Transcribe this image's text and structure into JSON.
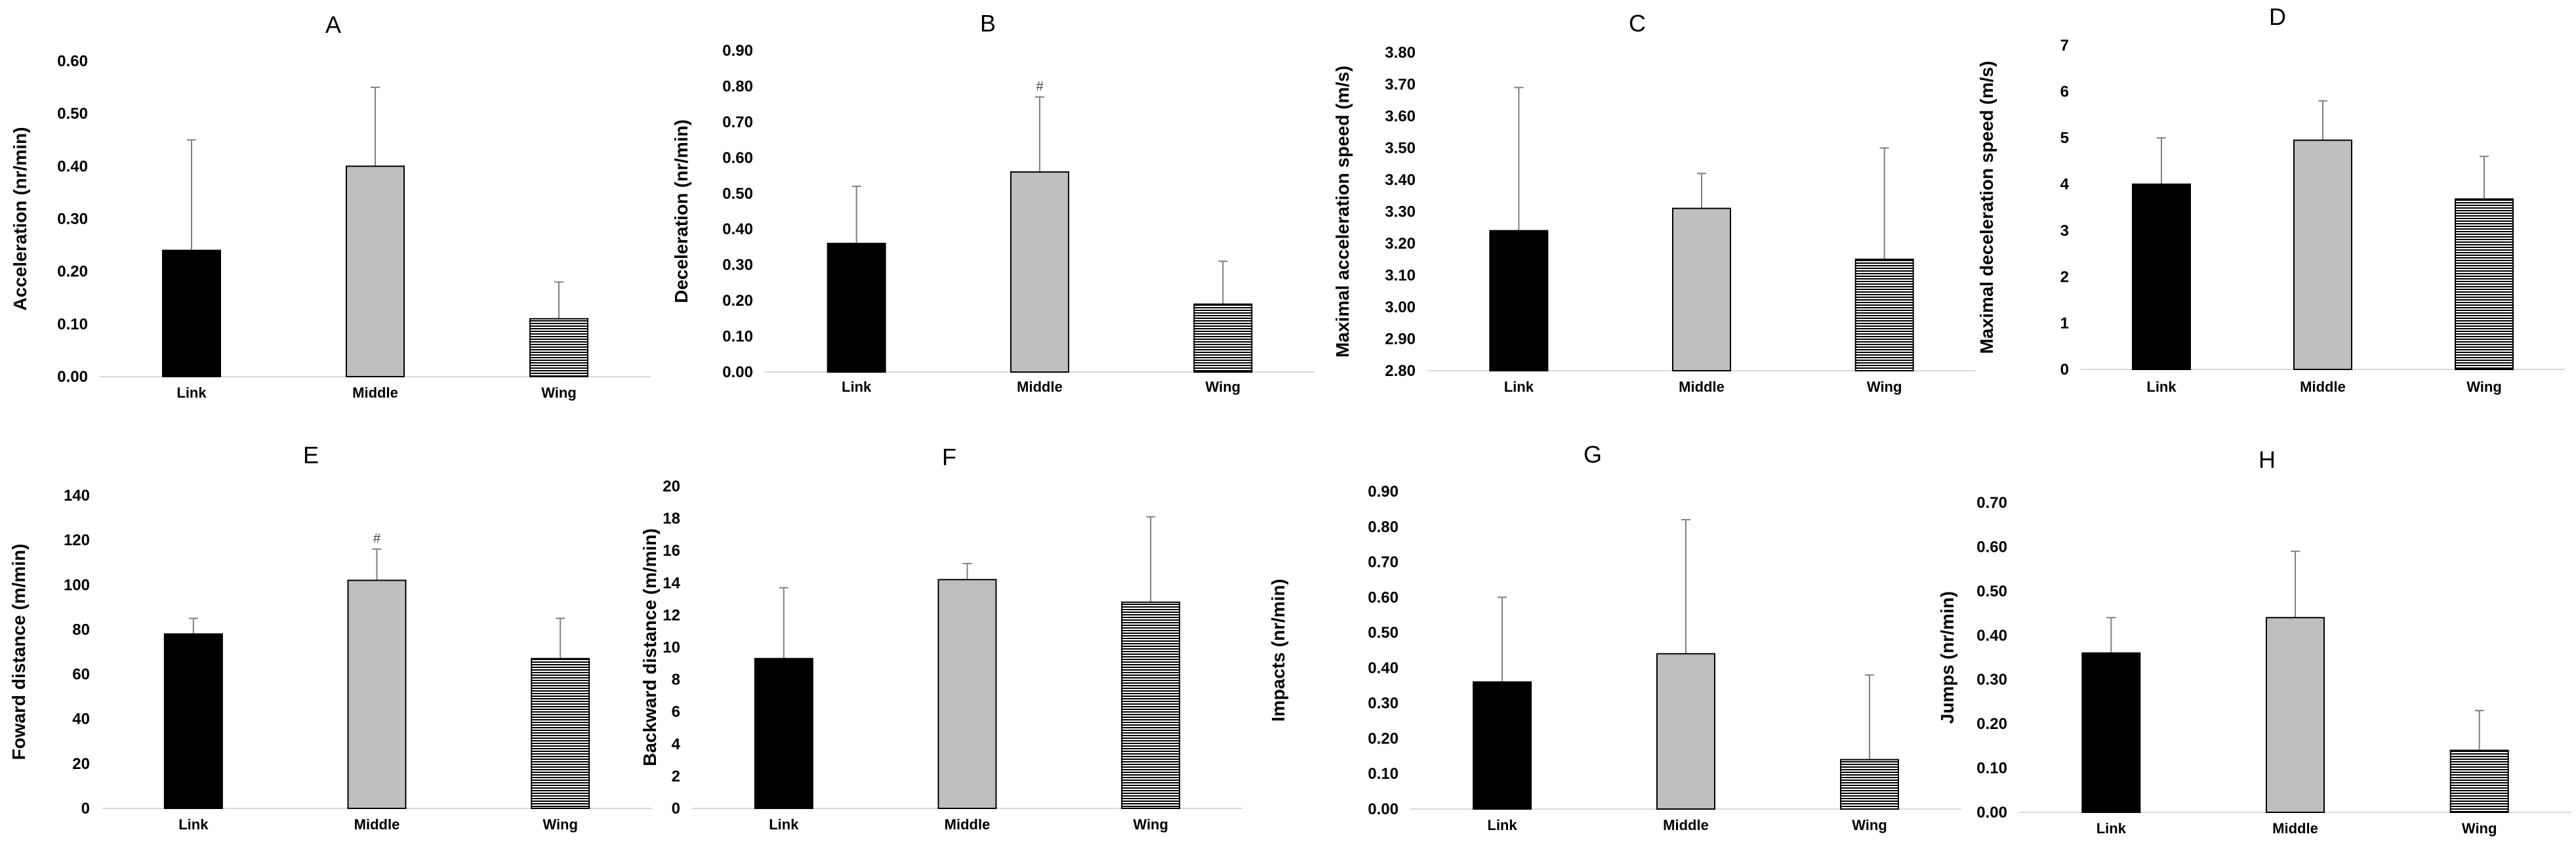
{
  "colors": {
    "link": "#000000",
    "middle": "#bfbfbf",
    "wing_fill": "#ffffff",
    "wing_stripe": "#000000",
    "error_bar": "#808080",
    "axis": "#d9d9d9"
  },
  "chart_data": [
    {
      "type": "bar",
      "panel": "A",
      "title": "A",
      "categories": [
        "Link",
        "Middle",
        "Wing"
      ],
      "values": [
        0.24,
        0.4,
        0.11
      ],
      "error_upper": [
        0.45,
        0.55,
        0.18
      ],
      "ylabel": "Acceleration (nr/min)",
      "ylim": [
        0,
        0.6
      ],
      "yticks": [
        "0.00",
        "0.10",
        "0.20",
        "0.30",
        "0.40",
        "0.50",
        "0.60"
      ],
      "significance": [
        "",
        "",
        ""
      ]
    },
    {
      "type": "bar",
      "panel": "B",
      "title": "B",
      "categories": [
        "Link",
        "Middle",
        "Wing"
      ],
      "values": [
        0.36,
        0.56,
        0.19
      ],
      "error_upper": [
        0.52,
        0.77,
        0.31
      ],
      "ylabel": "Deceleration (nr/min)",
      "ylim": [
        0,
        0.9
      ],
      "yticks": [
        "0.00",
        "0.10",
        "0.20",
        "0.30",
        "0.40",
        "0.50",
        "0.60",
        "0.70",
        "0.80",
        "0.90"
      ],
      "significance": [
        "",
        "#",
        ""
      ]
    },
    {
      "type": "bar",
      "panel": "C",
      "title": "C",
      "categories": [
        "Link",
        "Middle",
        "Wing"
      ],
      "values": [
        3.24,
        3.31,
        3.15
      ],
      "error_upper": [
        3.69,
        3.42,
        3.5
      ],
      "ylabel": "Maximal acceleration speed (m/s)",
      "ylim": [
        2.8,
        3.8
      ],
      "yticks": [
        "2.80",
        "2.90",
        "3.00",
        "3.10",
        "3.20",
        "3.30",
        "3.40",
        "3.50",
        "3.60",
        "3.70",
        "3.80"
      ],
      "significance": [
        "",
        "",
        ""
      ]
    },
    {
      "type": "bar",
      "panel": "D",
      "title": "D",
      "categories": [
        "Link",
        "Middle",
        "Wing"
      ],
      "values": [
        4.0,
        4.95,
        3.68
      ],
      "error_upper": [
        5.0,
        5.8,
        4.6
      ],
      "ylabel": "Maximal deceleration speed (m/s)",
      "ylim": [
        0,
        7
      ],
      "yticks": [
        "0",
        "1",
        "2",
        "3",
        "4",
        "5",
        "6",
        "7"
      ],
      "significance": [
        "",
        "",
        ""
      ]
    },
    {
      "type": "bar",
      "panel": "E",
      "title": "E",
      "categories": [
        "Link",
        "Middle",
        "Wing"
      ],
      "values": [
        78,
        102,
        67
      ],
      "error_upper": [
        85,
        116,
        85
      ],
      "ylabel": "Foward distance (m/min)",
      "ylim": [
        0,
        140
      ],
      "yticks": [
        "0",
        "20",
        "40",
        "60",
        "80",
        "100",
        "120",
        "140"
      ],
      "significance": [
        "",
        "#",
        ""
      ]
    },
    {
      "type": "bar",
      "panel": "F",
      "title": "F",
      "categories": [
        "Link",
        "Middle",
        "Wing"
      ],
      "values": [
        9.3,
        14.2,
        12.8
      ],
      "error_upper": [
        13.7,
        15.2,
        18.1
      ],
      "ylabel": "Backward distance (m/min)",
      "ylim": [
        0,
        20
      ],
      "yticks": [
        "0",
        "2",
        "4",
        "6",
        "8",
        "10",
        "12",
        "14",
        "16",
        "18",
        "20"
      ],
      "significance": [
        "",
        "",
        ""
      ]
    },
    {
      "type": "bar",
      "panel": "G",
      "title": "G",
      "categories": [
        "Link",
        "Middle",
        "Wing"
      ],
      "values": [
        0.36,
        0.44,
        0.14
      ],
      "error_upper": [
        0.6,
        0.82,
        0.38
      ],
      "ylabel": "Impacts (nr/min)",
      "ylim": [
        0,
        0.9
      ],
      "yticks": [
        "0.00",
        "0.10",
        "0.20",
        "0.30",
        "0.40",
        "0.50",
        "0.60",
        "0.70",
        "0.80",
        "0.90"
      ],
      "significance": [
        "",
        "",
        ""
      ]
    },
    {
      "type": "bar",
      "panel": "H",
      "title": "H",
      "categories": [
        "Link",
        "Middle",
        "Wing"
      ],
      "values": [
        0.36,
        0.44,
        0.14
      ],
      "error_upper": [
        0.44,
        0.59,
        0.23
      ],
      "ylabel": "Jumps (nr/min)",
      "ylim": [
        0,
        0.7
      ],
      "yticks": [
        "0.00",
        "0.10",
        "0.20",
        "0.30",
        "0.40",
        "0.50",
        "0.60",
        "0.70"
      ],
      "significance": [
        "",
        "",
        ""
      ]
    }
  ]
}
